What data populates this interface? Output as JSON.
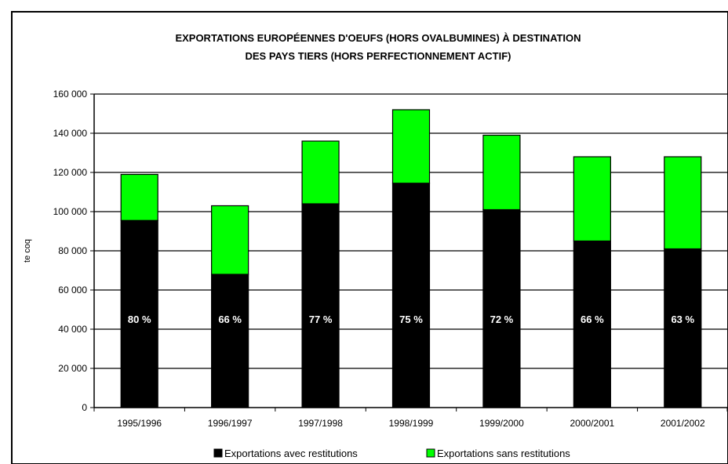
{
  "chart_data": {
    "type": "bar",
    "stacked": true,
    "title_lines": [
      "EXPORTATIONS EUROPÉENNES D'OEUFS (HORS OVALBUMINES) À DESTINATION",
      "DES PAYS TIERS (HORS PERFECTIONNEMENT ACTIF)"
    ],
    "ylabel": "te coq",
    "ylim": [
      0,
      160000
    ],
    "yticks": [
      0,
      20000,
      40000,
      60000,
      80000,
      100000,
      120000,
      140000,
      160000
    ],
    "ytick_labels": [
      "0",
      "20 000",
      "40 000",
      "60 000",
      "80 000",
      "100 000",
      "120 000",
      "140 000",
      "160 000"
    ],
    "categories": [
      "1995/1996",
      "1996/1997",
      "1997/1998",
      "1998/1999",
      "1999/2000",
      "2000/2001",
      "2001/2002"
    ],
    "series": [
      {
        "name": "Exportations avec restitutions",
        "color": "#000000",
        "values": [
          95500,
          68000,
          104000,
          114500,
          101000,
          85000,
          81000
        ]
      },
      {
        "name": "Exportations sans restitutions",
        "color": "#00ff00",
        "values": [
          23500,
          35000,
          32000,
          37500,
          38000,
          43000,
          47000
        ]
      }
    ],
    "data_labels": [
      "80 %",
      "66 %",
      "77 %",
      "75 %",
      "72 %",
      "66 %",
      "63 %"
    ],
    "grid": true,
    "legend_position": "bottom"
  }
}
